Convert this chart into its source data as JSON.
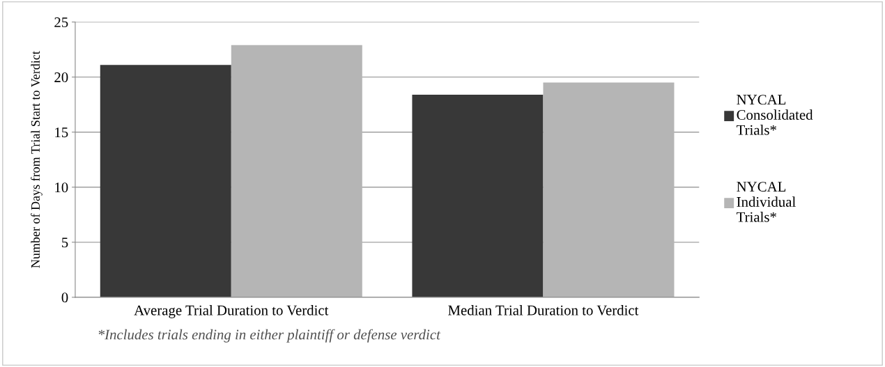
{
  "chart_data": {
    "type": "bar",
    "ylabel": "Number of Days from Trial Start to Verdict",
    "categories": [
      "Average Trial Duration to Verdict",
      "Median Trial Duration to Verdict"
    ],
    "series": [
      {
        "name": "NYCAL Consolidated Trials*",
        "color": "#383838",
        "values": [
          21.1,
          18.4
        ]
      },
      {
        "name": "NYCAL Individual Trials*",
        "color": "#b5b5b5",
        "values": [
          22.9,
          19.5
        ]
      }
    ],
    "ylim": [
      0,
      25
    ],
    "yticks": [
      0,
      5,
      10,
      15,
      20,
      25
    ],
    "grid": "y",
    "legend": "right",
    "annotations": [
      "*Includes trials ending in either plaintiff or defense verdict"
    ]
  }
}
